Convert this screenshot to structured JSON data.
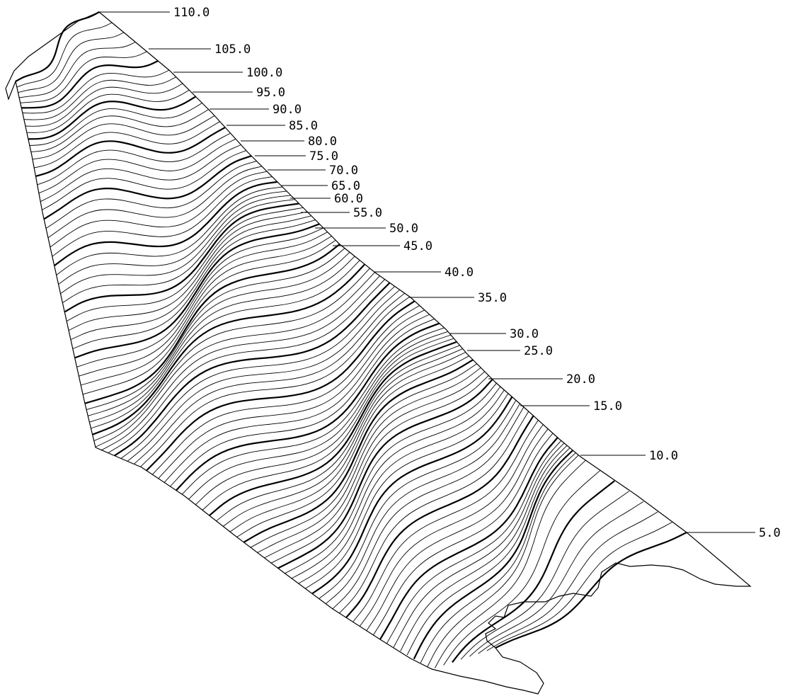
{
  "map": {
    "style": {
      "line_color": "#000000",
      "background": "#ffffff"
    },
    "contour_interval": 1.0,
    "index_interval": 5.0,
    "labels": [
      {
        "id": "c110",
        "text": "110.0"
      },
      {
        "id": "c105",
        "text": "105.0"
      },
      {
        "id": "c100",
        "text": "100.0"
      },
      {
        "id": "c95",
        "text": "95.0"
      },
      {
        "id": "c90",
        "text": "90.0"
      },
      {
        "id": "c85",
        "text": "85.0"
      },
      {
        "id": "c80",
        "text": "80.0"
      },
      {
        "id": "c75",
        "text": "75.0"
      },
      {
        "id": "c70",
        "text": "70.0"
      },
      {
        "id": "c65",
        "text": "65.0"
      },
      {
        "id": "c60",
        "text": "60.0"
      },
      {
        "id": "c55",
        "text": "55.0"
      },
      {
        "id": "c50",
        "text": "50.0"
      },
      {
        "id": "c45",
        "text": "45.0"
      },
      {
        "id": "c40",
        "text": "40.0"
      },
      {
        "id": "c35",
        "text": "35.0"
      },
      {
        "id": "c30",
        "text": "30.0"
      },
      {
        "id": "c25",
        "text": "25.0"
      },
      {
        "id": "c20",
        "text": "20.0"
      },
      {
        "id": "c15",
        "text": "15.0"
      },
      {
        "id": "c10",
        "text": "10.0"
      },
      {
        "id": "c5",
        "text": "5.0"
      }
    ]
  }
}
